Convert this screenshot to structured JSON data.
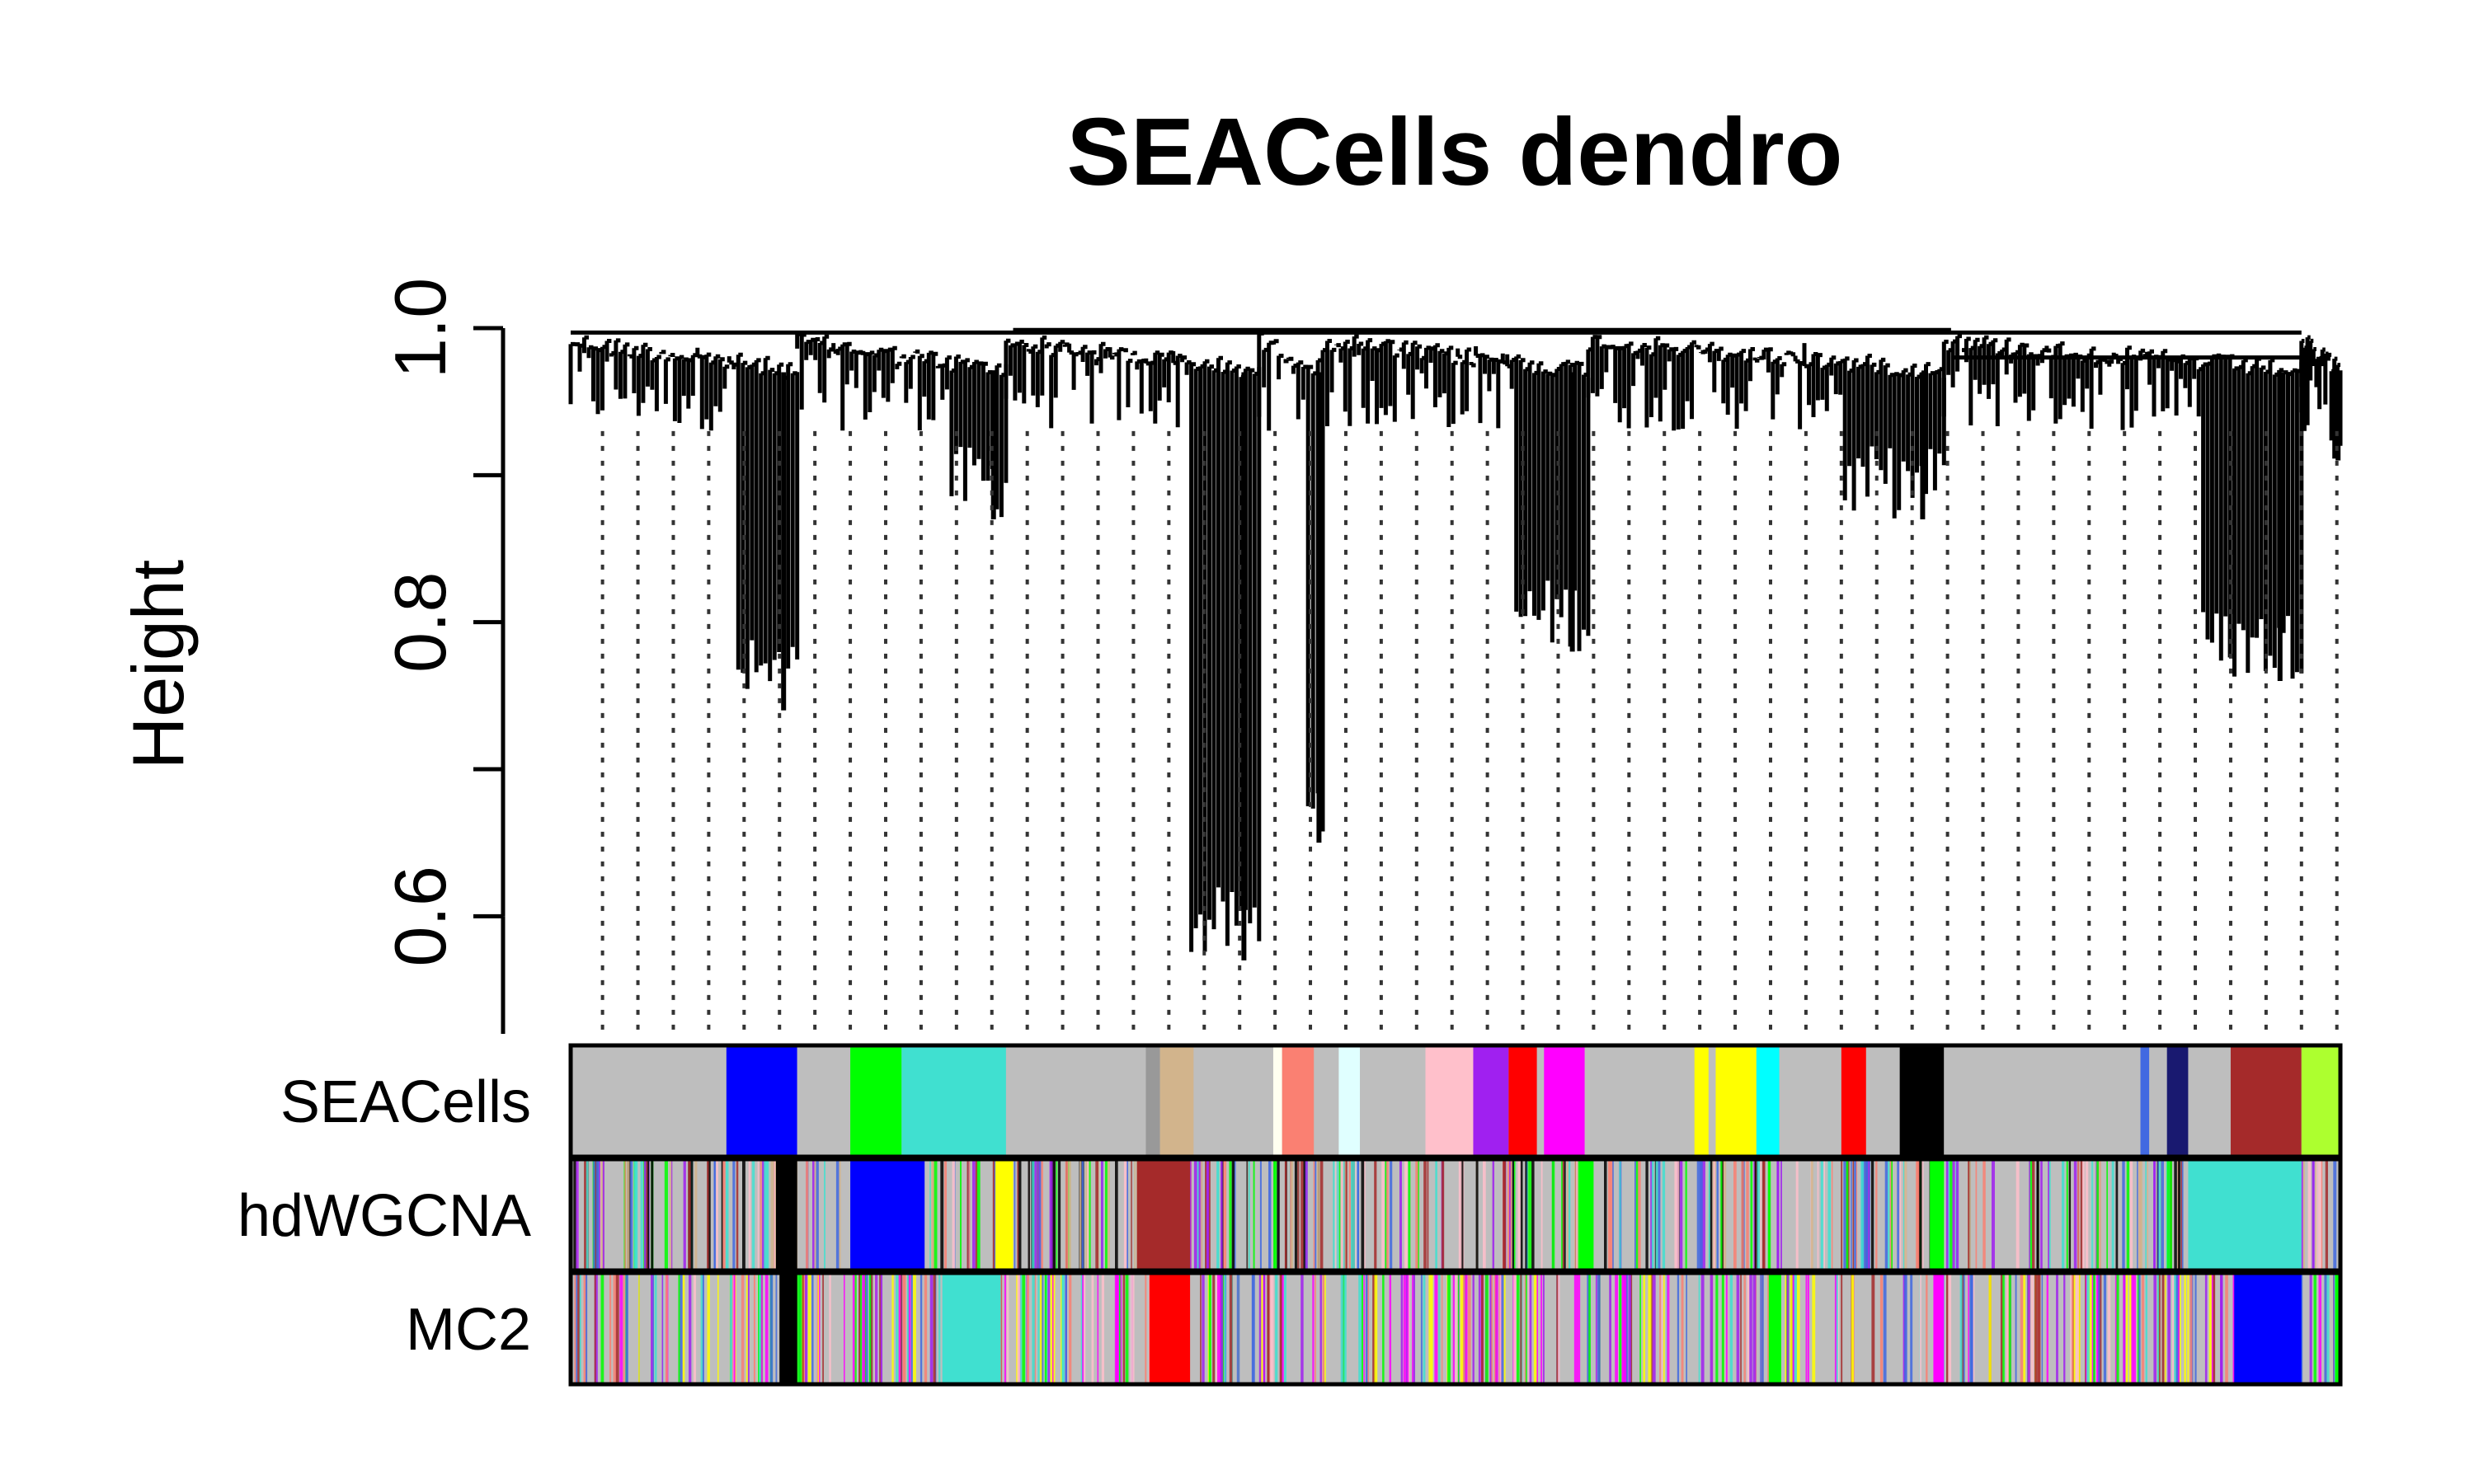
{
  "chart_data": {
    "type": "dendrogram",
    "title": "SEACells dendro",
    "ylabel": "Height",
    "xlabel": "",
    "ylim": [
      0.52,
      1.0
    ],
    "yticks": [
      0.6,
      0.8,
      1.0
    ],
    "ytick_labels": [
      "0.6",
      "0.8",
      "1.0"
    ],
    "grid": false,
    "cut_guides": "dotted",
    "branches": [
      {
        "name": "b1",
        "start": 0.0,
        "end": 0.128,
        "min_height": 0.74
      },
      {
        "name": "b2",
        "start": 0.128,
        "end": 0.246,
        "min_height": 0.87
      },
      {
        "name": "b3",
        "start": 0.246,
        "end": 0.389,
        "min_height": 0.57
      },
      {
        "name": "b4",
        "start": 0.389,
        "end": 0.425,
        "min_height": 0.65
      },
      {
        "name": "b5",
        "start": 0.425,
        "end": 0.575,
        "min_height": 0.78
      },
      {
        "name": "b6",
        "start": 0.575,
        "end": 0.776,
        "min_height": 0.87
      },
      {
        "name": "b7",
        "start": 0.776,
        "end": 0.978,
        "min_height": 0.76
      },
      {
        "name": "b8",
        "start": 0.978,
        "end": 1.0,
        "min_height": 0.91
      }
    ],
    "color_rows": [
      {
        "label": "SEACells",
        "segments": [
          {
            "from": 0.0,
            "to": 0.088,
            "color": "#bebebe"
          },
          {
            "from": 0.088,
            "to": 0.128,
            "color": "#0000ff"
          },
          {
            "from": 0.128,
            "to": 0.158,
            "color": "#bebebe"
          },
          {
            "from": 0.158,
            "to": 0.187,
            "color": "#00ff00"
          },
          {
            "from": 0.187,
            "to": 0.246,
            "color": "#40e0d0"
          },
          {
            "from": 0.246,
            "to": 0.325,
            "color": "#bebebe"
          },
          {
            "from": 0.325,
            "to": 0.333,
            "color": "#999999"
          },
          {
            "from": 0.333,
            "to": 0.352,
            "color": "#d2b48c"
          },
          {
            "from": 0.352,
            "to": 0.397,
            "color": "#bebebe"
          },
          {
            "from": 0.397,
            "to": 0.402,
            "color": "#fffff0"
          },
          {
            "from": 0.402,
            "to": 0.42,
            "color": "#fa8072"
          },
          {
            "from": 0.42,
            "to": 0.434,
            "color": "#bebebe"
          },
          {
            "from": 0.434,
            "to": 0.446,
            "color": "#e0ffff"
          },
          {
            "from": 0.446,
            "to": 0.483,
            "color": "#bebebe"
          },
          {
            "from": 0.483,
            "to": 0.51,
            "color": "#ffc0cb"
          },
          {
            "from": 0.51,
            "to": 0.53,
            "color": "#a020f0"
          },
          {
            "from": 0.53,
            "to": 0.546,
            "color": "#ff0000"
          },
          {
            "from": 0.546,
            "to": 0.55,
            "color": "#bebebe"
          },
          {
            "from": 0.55,
            "to": 0.573,
            "color": "#ff00ff"
          },
          {
            "from": 0.573,
            "to": 0.635,
            "color": "#bebebe"
          },
          {
            "from": 0.635,
            "to": 0.643,
            "color": "#ffff00"
          },
          {
            "from": 0.643,
            "to": 0.647,
            "color": "#bebebe"
          },
          {
            "from": 0.647,
            "to": 0.67,
            "color": "#ffff00"
          },
          {
            "from": 0.67,
            "to": 0.683,
            "color": "#00ffff"
          },
          {
            "from": 0.683,
            "to": 0.718,
            "color": "#bebebe"
          },
          {
            "from": 0.718,
            "to": 0.732,
            "color": "#ff0000"
          },
          {
            "from": 0.732,
            "to": 0.751,
            "color": "#bebebe"
          },
          {
            "from": 0.751,
            "to": 0.776,
            "color": "#000000"
          },
          {
            "from": 0.776,
            "to": 0.887,
            "color": "#bebebe"
          },
          {
            "from": 0.887,
            "to": 0.892,
            "color": "#4169e1"
          },
          {
            "from": 0.892,
            "to": 0.902,
            "color": "#bebebe"
          },
          {
            "from": 0.902,
            "to": 0.914,
            "color": "#191970"
          },
          {
            "from": 0.914,
            "to": 0.938,
            "color": "#bebebe"
          },
          {
            "from": 0.938,
            "to": 0.978,
            "color": "#a52a2a"
          },
          {
            "from": 0.978,
            "to": 1.0,
            "color": "#adff2f"
          }
        ]
      },
      {
        "label": "hdWGCNA",
        "base_color": "#bebebe",
        "speckle_colors": [
          "#a020f0",
          "#40e0d0",
          "#ffc0cb",
          "#fa8072",
          "#00ff00",
          "#a52a2a",
          "#d2b48c",
          "#4169e1",
          "#000000"
        ],
        "segments": [
          {
            "from": 0.116,
            "to": 0.128,
            "color": "#000000"
          },
          {
            "from": 0.158,
            "to": 0.2,
            "color": "#0000ff"
          },
          {
            "from": 0.24,
            "to": 0.25,
            "color": "#ffff00"
          },
          {
            "from": 0.32,
            "to": 0.35,
            "color": "#a52a2a"
          },
          {
            "from": 0.57,
            "to": 0.578,
            "color": "#00ff00"
          },
          {
            "from": 0.768,
            "to": 0.776,
            "color": "#00ff00"
          },
          {
            "from": 0.914,
            "to": 0.978,
            "color": "#40e0d0"
          }
        ]
      },
      {
        "label": "MC2",
        "base_color": "#bebebe",
        "speckle_colors": [
          "#a020f0",
          "#40e0d0",
          "#fa8072",
          "#ffff00",
          "#00ff00",
          "#a52a2a",
          "#ffc0cb",
          "#4169e1",
          "#ff00ff"
        ],
        "segments": [
          {
            "from": 0.118,
            "to": 0.128,
            "color": "#000000"
          },
          {
            "from": 0.21,
            "to": 0.243,
            "color": "#40e0d0"
          },
          {
            "from": 0.327,
            "to": 0.35,
            "color": "#ff0000"
          },
          {
            "from": 0.677,
            "to": 0.684,
            "color": "#00ff00"
          },
          {
            "from": 0.77,
            "to": 0.776,
            "color": "#ff00ff"
          },
          {
            "from": 0.94,
            "to": 0.978,
            "color": "#0000ff"
          },
          {
            "from": 0.997,
            "to": 1.0,
            "color": "#00ff00"
          }
        ]
      }
    ]
  }
}
